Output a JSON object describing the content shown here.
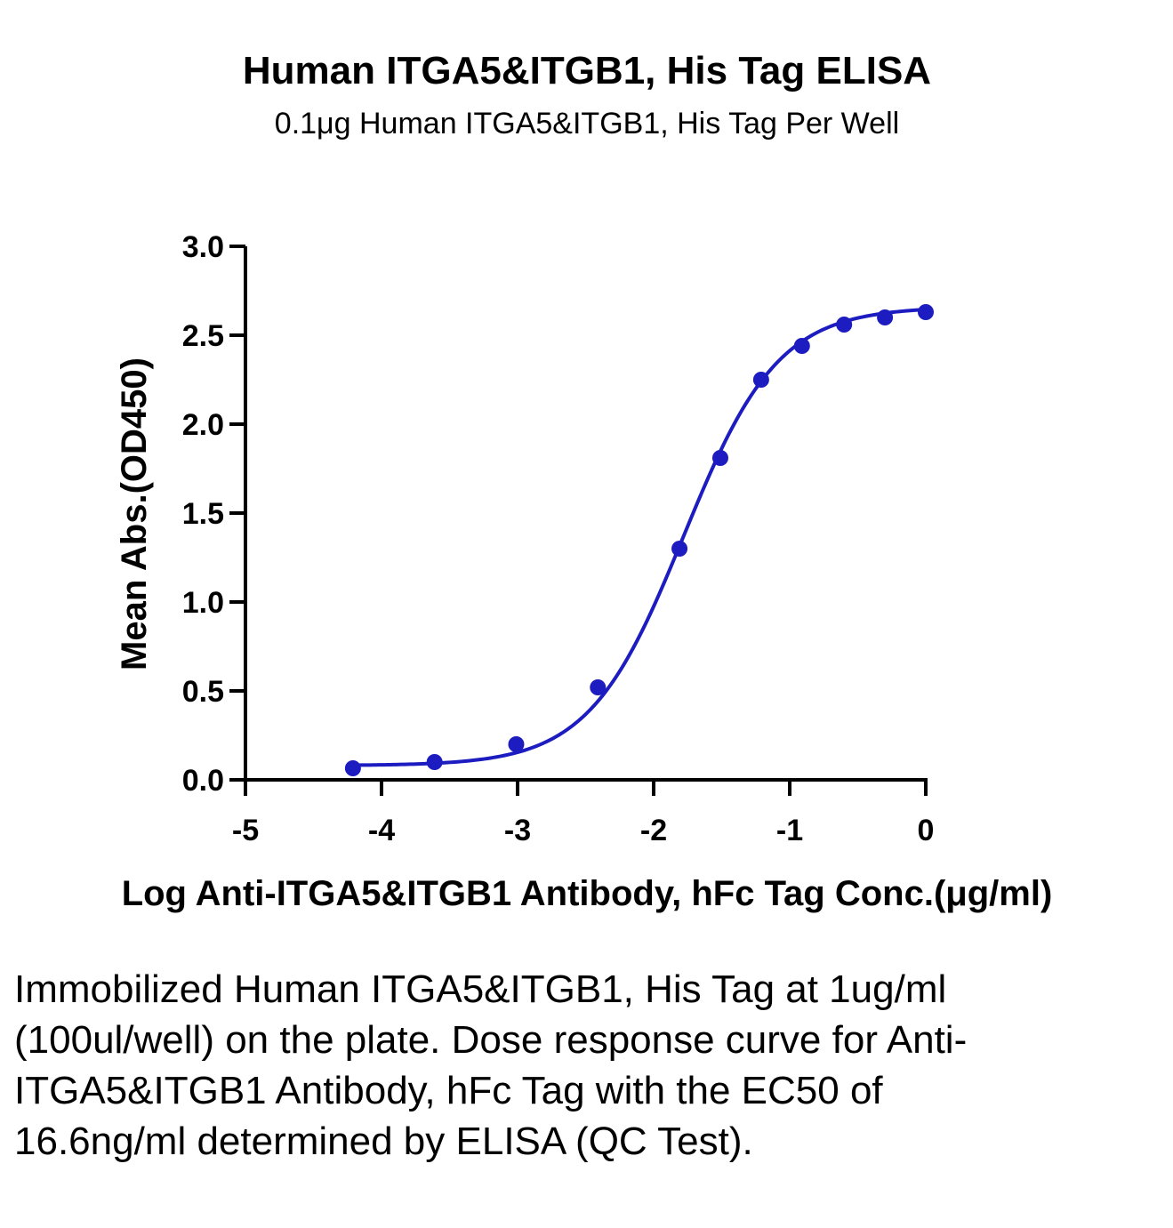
{
  "chart_data": {
    "type": "scatter",
    "title": "Human ITGA5&ITGB1, His Tag ELISA",
    "subtitle": "0.1μg Human ITGA5&ITGB1, His Tag Per Well",
    "xlabel": "Log Anti-ITGA5&ITGB1 Antibody, hFc Tag Conc.(μg/ml)",
    "ylabel": "Mean Abs.(OD450)",
    "xlim": [
      -5,
      0
    ],
    "ylim": [
      0,
      3
    ],
    "x_ticks": [
      "-5",
      "-4",
      "-3",
      "-2",
      "-1",
      "0"
    ],
    "y_ticks": [
      "0.0",
      "0.5",
      "1.0",
      "1.5",
      "2.0",
      "2.5",
      "3.0"
    ],
    "grid": false,
    "legend": "none",
    "series": [
      {
        "color": "#1c1cc0",
        "x": [
          -4.21,
          -3.61,
          -3.01,
          -2.41,
          -1.81,
          -1.51,
          -1.21,
          -0.91,
          -0.6,
          -0.3,
          0.0
        ],
        "y": [
          0.065,
          0.1,
          0.2,
          0.52,
          1.3,
          1.81,
          2.25,
          2.44,
          2.56,
          2.6,
          2.63
        ]
      }
    ],
    "fit": {
      "type": "4PL",
      "bottom": 0.08,
      "top": 2.66,
      "logEC50": -1.78,
      "hill": 1.25,
      "x_range": [
        -4.21,
        0.0
      ]
    }
  },
  "caption": "Immobilized Human ITGA5&ITGB1, His Tag at 1ug/ml (100ul/well) on the plate. Dose response curve for Anti-ITGA5&ITGB1 Antibody, hFc Tag with the EC50 of 16.6ng/ml determined by ELISA (QC Test)."
}
